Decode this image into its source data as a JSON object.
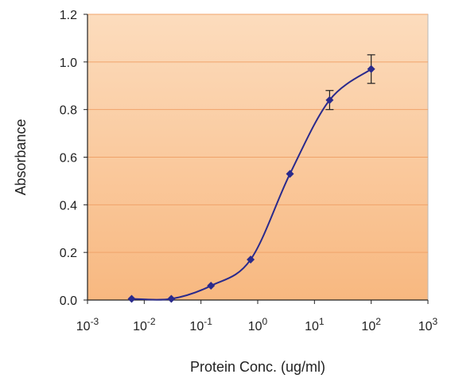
{
  "chart_data": {
    "type": "line",
    "xlabel": "Protein Conc. (ug/ml)",
    "ylabel": "Absorbance",
    "x_scale": "log",
    "xlim": [
      0.001,
      1000
    ],
    "ylim": [
      0,
      1.2
    ],
    "x_ticks": [
      {
        "base": "10",
        "exp": "-3",
        "value": 0.001
      },
      {
        "base": "10",
        "exp": "-2",
        "value": 0.01
      },
      {
        "base": "10",
        "exp": "-1",
        "value": 0.1
      },
      {
        "base": "10",
        "exp": "0",
        "value": 1
      },
      {
        "base": "10",
        "exp": "1",
        "value": 10
      },
      {
        "base": "10",
        "exp": "2",
        "value": 100
      },
      {
        "base": "10",
        "exp": "3",
        "value": 1000
      }
    ],
    "y_ticks": [
      "0.0",
      "0.2",
      "0.4",
      "0.6",
      "0.8",
      "1.0",
      "1.2"
    ],
    "grid": "horizontal",
    "series": [
      {
        "x": [
          0.006,
          0.03,
          0.15,
          0.75,
          3.7,
          18.5,
          100
        ],
        "y": [
          0.005,
          0.005,
          0.06,
          0.17,
          0.53,
          0.84,
          0.97
        ],
        "error": [
          0,
          0,
          0,
          0,
          0,
          0.04,
          0.06
        ]
      }
    ],
    "colors": {
      "plot_top": "#fcdcbd",
      "plot_bottom": "#f8b880",
      "grid": "#f0a36a",
      "series": "#2a2a8c",
      "axis": "#222222"
    }
  }
}
